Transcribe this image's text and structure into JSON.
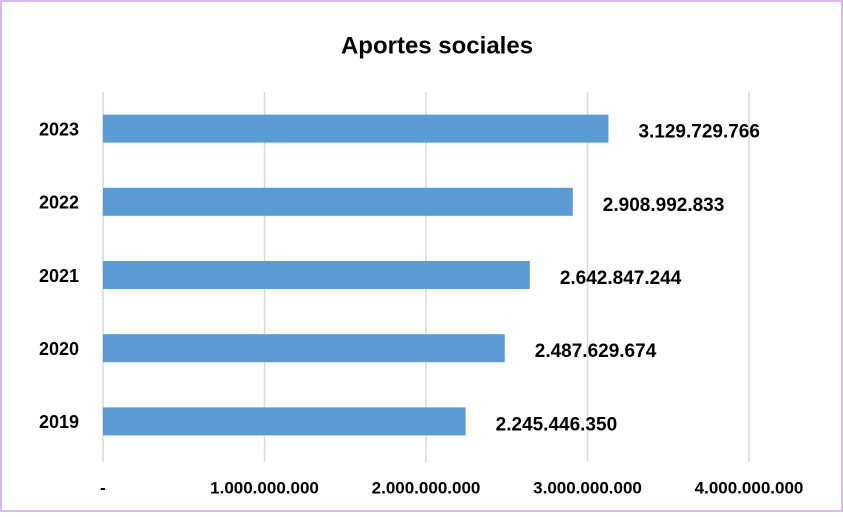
{
  "chart_data": {
    "type": "bar",
    "orientation": "horizontal",
    "title": "Aportes sociales",
    "categories": [
      "2023",
      "2022",
      "2021",
      "2020",
      "2019"
    ],
    "values": [
      3129729766,
      2908992833,
      2642847244,
      2487629674,
      2245446350
    ],
    "value_labels": [
      "3.129.729.766",
      "2.908.992.833",
      "2.642.847.244",
      "2.487.629.674",
      "2.245.446.350"
    ],
    "color": "#5b9bd5",
    "xlim": [
      0,
      4000000000
    ],
    "xticks": [
      {
        "value": 0,
        "label": "-"
      },
      {
        "value": 1000000000,
        "label": "1.000.000.000"
      },
      {
        "value": 2000000000,
        "label": "2.000.000.000"
      },
      {
        "value": 3000000000,
        "label": "3.000.000.000"
      },
      {
        "value": 4000000000,
        "label": "4.000.000.000"
      }
    ],
    "grid": true
  }
}
